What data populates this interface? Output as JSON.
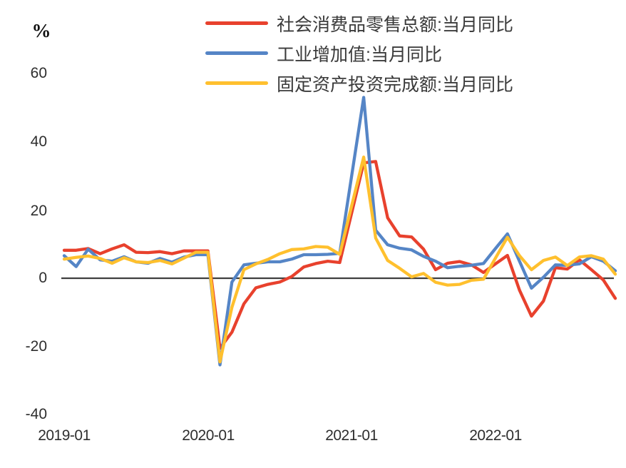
{
  "chart_data": {
    "type": "line",
    "title": "",
    "xlabel": "",
    "ylabel": "%",
    "ylim": [
      -40,
      60
    ],
    "grid": false,
    "legend_position": "top",
    "zero_line": true,
    "ytick_labels": [
      "60",
      "40",
      "20",
      "0",
      "-20",
      "-40"
    ],
    "ytick_values": [
      60,
      40,
      20,
      0,
      -20,
      -40
    ],
    "xtick_labels": [
      "2019-01",
      "2020-01",
      "2021-01",
      "2022-01"
    ],
    "xtick_month_index": [
      0,
      12,
      24,
      36
    ],
    "x": [
      "2019-01",
      "2019-02",
      "2019-03",
      "2019-04",
      "2019-05",
      "2019-06",
      "2019-07",
      "2019-08",
      "2019-09",
      "2019-10",
      "2019-11",
      "2019-12",
      "2020-01",
      "2020-02",
      "2020-03",
      "2020-04",
      "2020-05",
      "2020-06",
      "2020-07",
      "2020-08",
      "2020-09",
      "2020-10",
      "2020-11",
      "2020-12",
      "2021-01",
      "2021-02",
      "2021-03",
      "2021-04",
      "2021-05",
      "2021-06",
      "2021-07",
      "2021-08",
      "2021-09",
      "2021-10",
      "2021-11",
      "2021-12",
      "2022-01",
      "2022-02",
      "2022-03",
      "2022-04",
      "2022-05",
      "2022-06",
      "2022-07",
      "2022-08",
      "2022-09",
      "2022-10",
      "2022-11"
    ],
    "series": [
      {
        "name": "社会消费品零售总额:当月同比",
        "color": "#E8412D",
        "values": [
          8.2,
          8.2,
          8.7,
          7.2,
          8.6,
          9.8,
          7.6,
          7.5,
          7.8,
          7.2,
          8.0,
          8.0,
          8.0,
          -20.5,
          -15.8,
          -7.5,
          -2.8,
          -1.8,
          -1.1,
          0.5,
          3.3,
          4.3,
          5.0,
          4.6,
          19.2,
          33.8,
          34.2,
          17.7,
          12.4,
          12.1,
          8.5,
          2.5,
          4.4,
          4.9,
          3.9,
          1.7,
          4.2,
          6.7,
          -3.5,
          -11.1,
          -6.7,
          3.1,
          2.7,
          5.4,
          2.5,
          -0.5,
          -5.9
        ]
      },
      {
        "name": "工业增加值:当月同比",
        "color": "#5585C6",
        "values": [
          6.6,
          3.4,
          8.5,
          5.4,
          5.0,
          6.3,
          4.8,
          4.4,
          5.8,
          4.7,
          6.2,
          6.9,
          6.9,
          -25.4,
          -1.1,
          3.9,
          4.4,
          4.8,
          4.8,
          5.6,
          6.9,
          6.9,
          7.0,
          7.3,
          30.1,
          53.0,
          14.1,
          9.8,
          8.8,
          8.3,
          6.4,
          5.0,
          3.1,
          3.5,
          3.8,
          4.3,
          8.7,
          13.0,
          5.0,
          -2.9,
          0.3,
          3.9,
          3.8,
          4.2,
          6.3,
          5.0,
          2.2
        ]
      },
      {
        "name": "固定资产投资完成额:当月同比",
        "color": "#FFC02E",
        "values": [
          5.6,
          6.1,
          6.5,
          5.8,
          4.4,
          6.0,
          4.8,
          4.6,
          5.2,
          4.2,
          5.9,
          7.6,
          7.6,
          -24.5,
          -8.5,
          2.5,
          4.2,
          5.5,
          7.2,
          8.4,
          8.6,
          9.3,
          9.1,
          7.0,
          21.3,
          35.5,
          11.8,
          5.2,
          2.9,
          0.4,
          1.4,
          -1.2,
          -2.0,
          -1.8,
          -0.6,
          -0.3,
          5.9,
          12.0,
          6.6,
          2.5,
          5.2,
          6.2,
          3.7,
          6.2,
          6.6,
          5.6,
          1.2
        ]
      }
    ]
  },
  "colors": {
    "zero_line": "#3f3f3f",
    "axis_text": "#2e2e2e",
    "legend_text": "#3a3a3a",
    "background": "#ffffff"
  }
}
